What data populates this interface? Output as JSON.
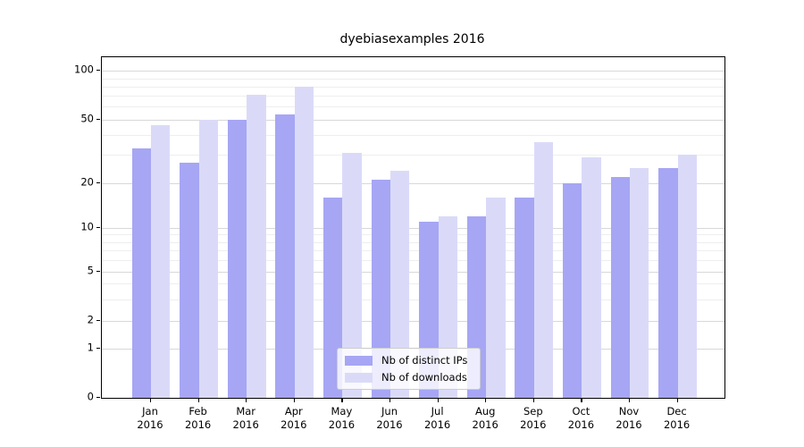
{
  "title": "dyebiasexamples 2016",
  "chart_data": {
    "type": "bar",
    "categories": [
      "Jan",
      "Feb",
      "Mar",
      "Apr",
      "May",
      "Jun",
      "Jul",
      "Aug",
      "Sep",
      "Oct",
      "Nov",
      "Dec"
    ],
    "year_label": "2016",
    "series": [
      {
        "name": "Nb of distinct IPs",
        "color": "#a6a6f4",
        "values": [
          33,
          27,
          50,
          54,
          16,
          21,
          11,
          12,
          16,
          20,
          22,
          25
        ]
      },
      {
        "name": "Nb of downloads",
        "color": "#dadaf8",
        "values": [
          46,
          50,
          71,
          80,
          31,
          24,
          12,
          16,
          36,
          29,
          25,
          30
        ]
      }
    ],
    "xlabel": "",
    "ylabel": "",
    "yscale": "log-like (compressed toward 0, linear 0-1)",
    "y_major_ticks": [
      0,
      1,
      2,
      5,
      10,
      20,
      50,
      100
    ],
    "y_minor_ticks": [
      3,
      4,
      6,
      7,
      8,
      9,
      30,
      40,
      60,
      70,
      80,
      90
    ],
    "ylim": [
      0,
      130
    ],
    "grid": "major and minor horizontal gridlines",
    "legend_position": "lower center"
  },
  "legend": {
    "items": [
      {
        "label": "Nb of distinct IPs"
      },
      {
        "label": "Nb of downloads"
      }
    ]
  }
}
